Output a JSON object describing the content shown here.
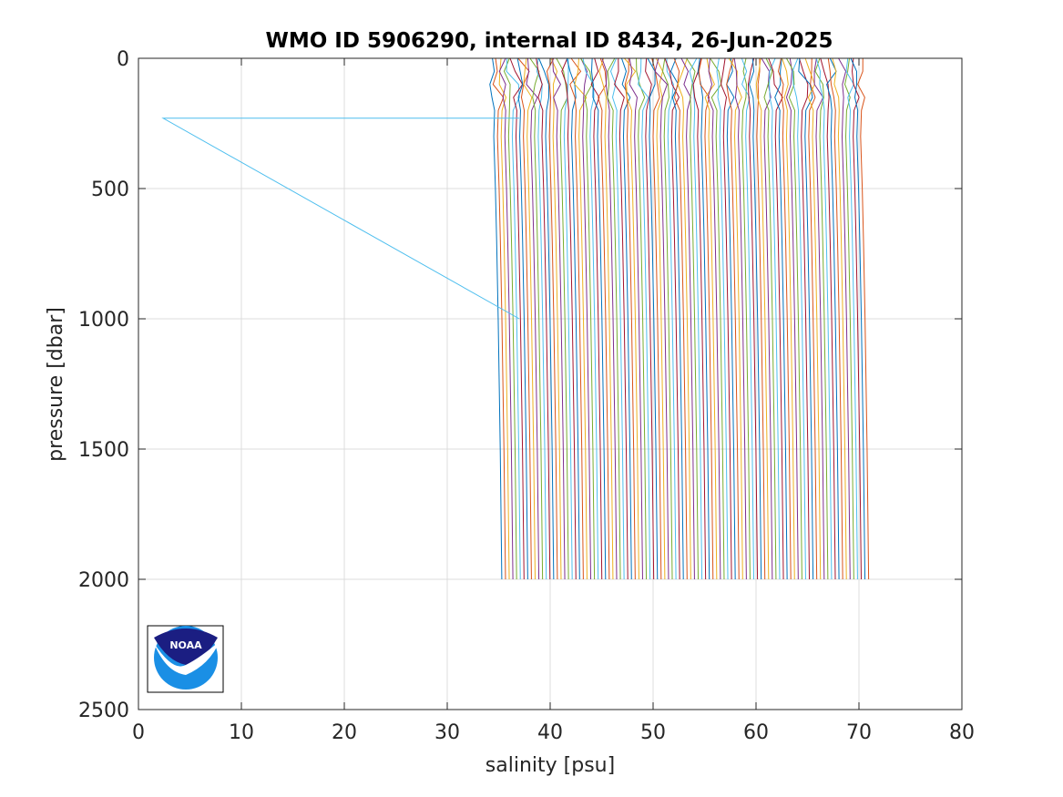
{
  "chart_data": {
    "type": "line",
    "title": "WMO ID 5906290, internal ID 8434, 26-Jun-2025",
    "xlabel": "salinity [psu]",
    "ylabel": "pressure [dbar]",
    "xlim": [
      0,
      80
    ],
    "ylim": [
      0,
      2500
    ],
    "y_reversed": true,
    "grid": true,
    "x_ticks": [
      "0",
      "10",
      "20",
      "30",
      "40",
      "50",
      "60",
      "70",
      "80"
    ],
    "y_ticks": [
      "0",
      "500",
      "1000",
      "1500",
      "2000",
      "2500"
    ],
    "profiles": {
      "count": 100,
      "offset_step": 0.36,
      "base_salinity_start": 34.4,
      "pressure_levels": [
        0,
        50,
        100,
        150,
        200,
        300,
        400,
        500,
        700,
        1000,
        1500,
        2000
      ],
      "base_shape_salinity_delta": [
        0.0,
        0.1,
        0.2,
        0.25,
        0.2,
        0.12,
        0.2,
        0.28,
        0.4,
        0.55,
        0.75,
        0.9
      ]
    },
    "outlier_series": {
      "x": [
        37.0,
        2.4,
        37.0
      ],
      "y": [
        230,
        230,
        1000
      ]
    },
    "colors": [
      "#0072BD",
      "#D95319",
      "#EDB120",
      "#7E2F8E",
      "#77AC30",
      "#4DBEEE",
      "#A2142F"
    ],
    "outlier_color": "#4DBEEE"
  },
  "logo": {
    "text": "NOAA",
    "colors": {
      "navy": "#1b1e82",
      "blue": "#1a8fe5",
      "white": "#ffffff"
    }
  }
}
